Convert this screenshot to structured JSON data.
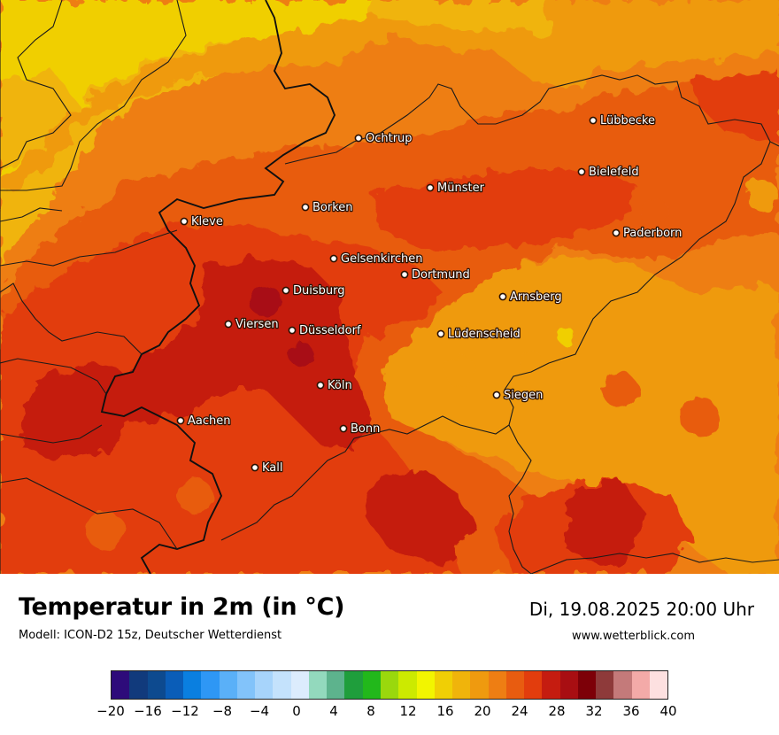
{
  "map": {
    "cities": [
      {
        "name": "Lübbecke"
      },
      {
        "name": "Ochtrup"
      },
      {
        "name": "Bielefeld"
      },
      {
        "name": "Münster"
      },
      {
        "name": "Borken"
      },
      {
        "name": "Kleve"
      },
      {
        "name": "Paderborn"
      },
      {
        "name": "Gelsenkirchen"
      },
      {
        "name": "Dortmund"
      },
      {
        "name": "Duisburg"
      },
      {
        "name": "Arnsberg"
      },
      {
        "name": "Viersen"
      },
      {
        "name": "Düsseldorf"
      },
      {
        "name": "Lüdenscheid"
      },
      {
        "name": "Köln"
      },
      {
        "name": "Siegen"
      },
      {
        "name": "Aachen"
      },
      {
        "name": "Bonn"
      },
      {
        "name": "Kall"
      }
    ]
  },
  "footer": {
    "title": "Temperatur in 2m (in °C)",
    "model": "Modell: ICON-D2 15z, Deutscher Wetterdienst",
    "datetime": "Di, 19.08.2025 20:00 Uhr",
    "website": "www.wetterblick.com"
  },
  "legend": {
    "colors": [
      "#2d0b7a",
      "#113a7c",
      "#0d4a8f",
      "#0a5db8",
      "#0a7fe0",
      "#2e97f5",
      "#5ab0f8",
      "#82c3fa",
      "#a7d4fb",
      "#c4e2fc",
      "#dcecfd",
      "#93d9bd",
      "#5db38d",
      "#1f9e3c",
      "#22b81b",
      "#9ad80d",
      "#ccea00",
      "#f2f500",
      "#f0cf05",
      "#f0b40b",
      "#ef9a0f",
      "#ee7e13",
      "#e85c10",
      "#e23d0d",
      "#c51c10",
      "#a80e12",
      "#7d0008",
      "#8e3a3a",
      "#c47a7a",
      "#f3aaa8",
      "#fde0e0"
    ],
    "ticks": [
      "−20",
      "−16",
      "−12",
      "−8",
      "−4",
      "0",
      "4",
      "8",
      "12",
      "16",
      "20",
      "24",
      "28",
      "32",
      "36",
      "40"
    ]
  }
}
